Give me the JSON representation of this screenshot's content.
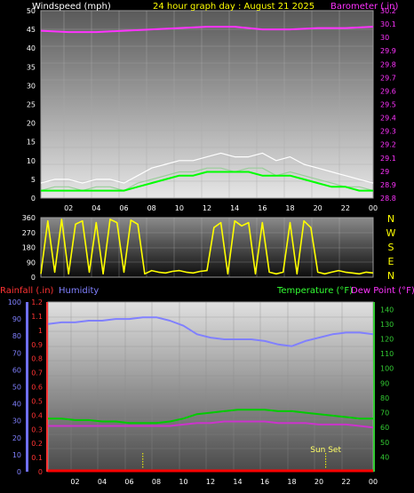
{
  "chart_data": [
    {
      "type": "line",
      "panel": "wind-barometer",
      "title": "24 hour graph day : August 21 2025",
      "ylabel_left": "Windspeed (mph)",
      "ylabel_right": "Barometer (.in)",
      "ylim_left": [
        0,
        50
      ],
      "yticks_left": [
        "50",
        "45",
        "40",
        "35",
        "30",
        "25",
        "20",
        "15",
        "10",
        "5",
        "0"
      ],
      "ylim_right": [
        28.8,
        30.2
      ],
      "yticks_right": [
        "30.2",
        "30.1",
        "30",
        "29.9",
        "29.8",
        "29.7",
        "29.6",
        "29.5",
        "29.4",
        "29.3",
        "29.2",
        "29.1",
        "29",
        "28.9",
        "28.8"
      ],
      "xticks": [
        "02",
        "04",
        "06",
        "08",
        "10",
        "12",
        "14",
        "16",
        "18",
        "20",
        "22",
        "00"
      ],
      "grid": true,
      "series": [
        {
          "role": "wind_gust",
          "color": "#ffffff",
          "x": [
            0,
            1,
            2,
            3,
            4,
            5,
            6,
            7,
            8,
            9,
            10,
            11,
            12,
            13,
            14,
            15,
            16,
            17,
            18,
            19,
            20,
            21,
            22,
            23,
            24
          ],
          "values": [
            4,
            5,
            5,
            4,
            5,
            5,
            4,
            6,
            8,
            9,
            10,
            10,
            11,
            12,
            11,
            11,
            12,
            10,
            11,
            9,
            8,
            7,
            6,
            5,
            4
          ]
        },
        {
          "role": "wind_speed",
          "color": "#9acd9a",
          "x": [
            0,
            1,
            2,
            3,
            4,
            5,
            6,
            7,
            8,
            9,
            10,
            11,
            12,
            13,
            14,
            15,
            16,
            17,
            18,
            19,
            20,
            21,
            22,
            23,
            24
          ],
          "values": [
            2,
            3,
            3,
            2,
            3,
            3,
            2,
            4,
            5,
            6,
            7,
            7,
            8,
            8,
            7,
            8,
            8,
            6,
            7,
            6,
            5,
            4,
            3,
            3,
            2
          ]
        },
        {
          "role": "wind_average",
          "color": "#00ff00",
          "x": [
            0,
            1,
            2,
            3,
            4,
            5,
            6,
            7,
            8,
            9,
            10,
            11,
            12,
            13,
            14,
            15,
            16,
            17,
            18,
            19,
            20,
            21,
            22,
            23,
            24
          ],
          "values": [
            2,
            2,
            2,
            2,
            2,
            2,
            2,
            3,
            4,
            5,
            6,
            6,
            7,
            7,
            7,
            7,
            6,
            6,
            6,
            5,
            4,
            3,
            3,
            2,
            2
          ]
        },
        {
          "role": "barometer",
          "color": "#ff33ff",
          "x": [
            0,
            2,
            4,
            6,
            8,
            10,
            12,
            14,
            16,
            18,
            20,
            22,
            24
          ],
          "values": [
            30.05,
            30.04,
            30.04,
            30.05,
            30.06,
            30.07,
            30.08,
            30.08,
            30.06,
            30.06,
            30.07,
            30.07,
            30.08
          ]
        }
      ]
    },
    {
      "type": "line",
      "panel": "wind-direction",
      "ylim": [
        0,
        360
      ],
      "yticks": [
        "360",
        "270",
        "180",
        "90",
        "0"
      ],
      "compass_labels": [
        "N",
        "W",
        "S",
        "E",
        "N"
      ],
      "xticks": [
        "02",
        "04",
        "06",
        "08",
        "10",
        "12",
        "14",
        "16",
        "18",
        "20",
        "22",
        "00"
      ],
      "series": [
        {
          "role": "wind_direction",
          "color": "#ffff00",
          "x": [
            0,
            0.5,
            1,
            1.5,
            2,
            2.5,
            3,
            3.5,
            4,
            4.5,
            5,
            5.5,
            6,
            6.5,
            7,
            7.5,
            8,
            8.5,
            9,
            9.5,
            10,
            10.5,
            11,
            11.5,
            12,
            12.5,
            13,
            13.5,
            14,
            14.5,
            15,
            15.5,
            16,
            16.5,
            17,
            17.5,
            18,
            18.5,
            19,
            19.5,
            20,
            20.5,
            21,
            21.5,
            22,
            22.5,
            23,
            23.5,
            24
          ],
          "values": [
            20,
            340,
            30,
            350,
            20,
            320,
            340,
            30,
            330,
            20,
            350,
            330,
            30,
            345,
            320,
            20,
            40,
            30,
            25,
            35,
            40,
            30,
            25,
            35,
            40,
            300,
            330,
            20,
            340,
            310,
            330,
            20,
            330,
            30,
            20,
            30,
            330,
            20,
            340,
            300,
            30,
            20,
            30,
            40,
            30,
            25,
            20,
            30,
            25
          ]
        }
      ]
    },
    {
      "type": "line",
      "panel": "rain-humidity-temperature",
      "legend": [
        "Rainfall (.in)",
        "Humidity",
        "Temperature (°F)",
        "Dew Point (°F)"
      ],
      "ylabel_rainfall": "Rainfall (.in)",
      "ylabel_humidity": "Humidity",
      "ylabel_temperature": "Temperature (°F)",
      "ylabel_dewpoint": "Dew Point (°F)",
      "ylim_humidity": [
        0,
        100
      ],
      "yticks_humidity": [
        "100",
        "90",
        "80",
        "70",
        "60",
        "50",
        "40",
        "30",
        "20",
        "10",
        "0"
      ],
      "ylim_rainfall": [
        0,
        1.2
      ],
      "yticks_rainfall": [
        "1.2",
        "1.1",
        "1",
        "0.9",
        "0.8",
        "0.7",
        "0.6",
        "0.5",
        "0.4",
        "0.3",
        "0.2",
        "0.1",
        "0"
      ],
      "ylim_temperature": [
        30,
        145
      ],
      "yticks_temperature": [
        "140",
        "130",
        "120",
        "110",
        "100",
        "90",
        "80",
        "70",
        "60",
        "50",
        "40"
      ],
      "xticks": [
        "02",
        "04",
        "06",
        "08",
        "10",
        "12",
        "14",
        "16",
        "18",
        "20",
        "22",
        "00"
      ],
      "annotation": "Sun Set",
      "event_markers_hours": [
        7.0,
        20.5
      ],
      "series": [
        {
          "role": "humidity",
          "color": "#8080ff",
          "x": [
            0,
            1,
            2,
            3,
            4,
            5,
            6,
            7,
            8,
            9,
            10,
            11,
            12,
            13,
            14,
            15,
            16,
            17,
            18,
            19,
            20,
            21,
            22,
            23,
            24
          ],
          "values": [
            87,
            88,
            88,
            89,
            89,
            90,
            90,
            91,
            91,
            89,
            86,
            81,
            79,
            78,
            78,
            78,
            77,
            75,
            74,
            77,
            79,
            81,
            82,
            82,
            81
          ]
        },
        {
          "role": "temperature",
          "color": "#00cc00",
          "x": [
            0,
            1,
            2,
            3,
            4,
            5,
            6,
            7,
            8,
            9,
            10,
            11,
            12,
            13,
            14,
            15,
            16,
            17,
            18,
            19,
            20,
            21,
            22,
            23,
            24
          ],
          "values": [
            66,
            66,
            65,
            65,
            64,
            64,
            63,
            63,
            63,
            64,
            66,
            69,
            70,
            71,
            72,
            72,
            72,
            71,
            71,
            70,
            69,
            68,
            67,
            66,
            66
          ]
        },
        {
          "role": "dew_point",
          "color": "#cc33cc",
          "x": [
            0,
            1,
            2,
            3,
            4,
            5,
            6,
            7,
            8,
            9,
            10,
            11,
            12,
            13,
            14,
            15,
            16,
            17,
            18,
            19,
            20,
            21,
            22,
            23,
            24
          ],
          "values": [
            61,
            61,
            61,
            61,
            61,
            61,
            61,
            61,
            61,
            61,
            62,
            63,
            63,
            64,
            64,
            64,
            64,
            63,
            63,
            63,
            62,
            62,
            62,
            61,
            60
          ]
        },
        {
          "role": "rainfall",
          "color": "#ff0000",
          "x": [
            0,
            24
          ],
          "values": [
            0,
            0
          ]
        }
      ]
    }
  ]
}
